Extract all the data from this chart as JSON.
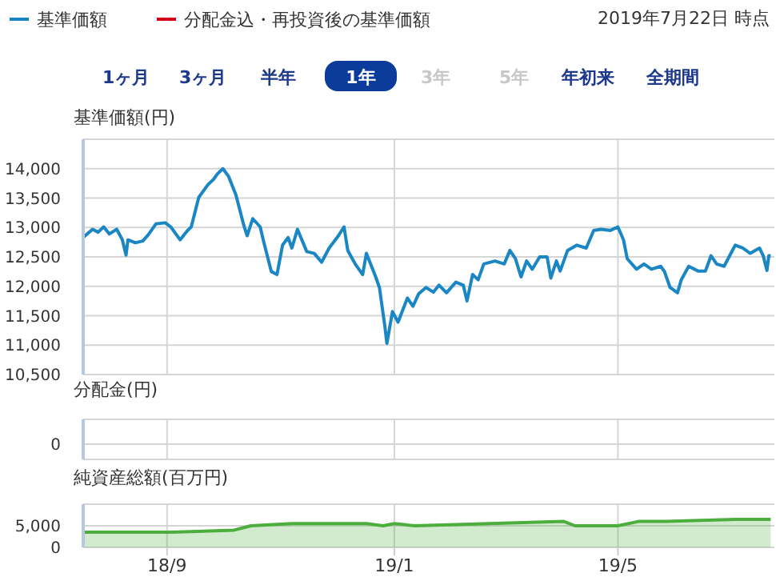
{
  "chart_data": [
    {
      "type": "line",
      "subtitle": "2019年7月22日 時点",
      "ylabel": "基準価額(円)",
      "legend": "top left",
      "grid": true,
      "tick_labels": "y",
      "annotations": [
        "1ヶ月",
        "3ヶ月",
        "半年",
        "1年",
        "3年",
        "5年",
        "年初来",
        "全期間"
      ],
      "xlim": [
        "2018-07-18",
        "2019-07-24"
      ],
      "ylim": [
        10500,
        14500
      ],
      "yticks": [
        {
          "value": 10500,
          "label": "10,500"
        },
        {
          "value": 11000,
          "label": "11,000"
        },
        {
          "value": 11500,
          "label": "11,500"
        },
        {
          "value": 12000,
          "label": "12,000"
        },
        {
          "value": 12500,
          "label": "12,500"
        },
        {
          "value": 13000,
          "label": "13,000"
        },
        {
          "value": 13500,
          "label": "13,500"
        },
        {
          "value": 14000,
          "label": "14,000"
        }
      ],
      "x": [
        "2018-07-18",
        "2018-07-23",
        "2018-07-26",
        "2018-07-29",
        "2018-08-01",
        "2018-08-05",
        "2018-08-08",
        "2018-08-10",
        "2018-08-11",
        "2018-08-15",
        "2018-08-19",
        "2018-08-22",
        "2018-08-26",
        "2018-08-31",
        "2018-09-03",
        "2018-09-08",
        "2018-09-12",
        "2018-09-14",
        "2018-09-18",
        "2018-09-23",
        "2018-09-26",
        "2018-09-28",
        "2018-10-01",
        "2018-10-04",
        "2018-10-08",
        "2018-10-12",
        "2018-10-14",
        "2018-10-17",
        "2018-10-21",
        "2018-10-23",
        "2018-10-27",
        "2018-10-30",
        "2018-11-02",
        "2018-11-05",
        "2018-11-07",
        "2018-11-10",
        "2018-11-15",
        "2018-11-19",
        "2018-11-23",
        "2018-11-27",
        "2018-12-02",
        "2018-12-05",
        "2018-12-07",
        "2018-12-11",
        "2018-12-15",
        "2018-12-17",
        "2018-12-22",
        "2018-12-24",
        "2018-12-27",
        "2018-12-28",
        "2018-12-31",
        "2019-01-03",
        "2019-01-08",
        "2019-01-11",
        "2019-01-14",
        "2019-01-18",
        "2019-01-22",
        "2019-01-25",
        "2019-01-29",
        "2019-02-03",
        "2019-02-07",
        "2019-02-09",
        "2019-02-12",
        "2019-02-15",
        "2019-02-18",
        "2019-02-24",
        "2019-03-01",
        "2019-03-04",
        "2019-03-07",
        "2019-03-10",
        "2019-03-13",
        "2019-03-16",
        "2019-03-20",
        "2019-03-24",
        "2019-03-26",
        "2019-03-29",
        "2019-03-31",
        "2019-04-04",
        "2019-04-09",
        "2019-04-14",
        "2019-04-18",
        "2019-04-22",
        "2019-04-27",
        "2019-05-01",
        "2019-05-04",
        "2019-05-06",
        "2019-05-11",
        "2019-05-15",
        "2019-05-19",
        "2019-05-24",
        "2019-05-26",
        "2019-05-29",
        "2019-06-02",
        "2019-06-04",
        "2019-06-08",
        "2019-06-13",
        "2019-06-17",
        "2019-06-20",
        "2019-06-23",
        "2019-06-27",
        "2019-06-30",
        "2019-07-03",
        "2019-07-07",
        "2019-07-11",
        "2019-07-16",
        "2019-07-18",
        "2019-07-20",
        "2019-07-21",
        "2019-07-22"
      ],
      "series": [
        {
          "name": "基準価額",
          "color": "#1a87c4",
          "values": [
            12830,
            12970,
            12920,
            13010,
            12890,
            12970,
            12790,
            12530,
            12790,
            12740,
            12770,
            12880,
            13060,
            13080,
            13010,
            12790,
            12950,
            13010,
            13510,
            13730,
            13820,
            13910,
            14000,
            13870,
            13550,
            13060,
            12860,
            13150,
            13010,
            12740,
            12250,
            12200,
            12700,
            12830,
            12650,
            12970,
            12590,
            12560,
            12410,
            12650,
            12860,
            13010,
            12610,
            12380,
            12200,
            12560,
            12160,
            11980,
            11300,
            11030,
            11570,
            11390,
            11800,
            11660,
            11870,
            11980,
            11900,
            12020,
            11890,
            12070,
            12020,
            11750,
            12200,
            12110,
            12380,
            12430,
            12380,
            12610,
            12470,
            12160,
            12430,
            12290,
            12500,
            12500,
            12140,
            12430,
            12260,
            12610,
            12700,
            12650,
            12950,
            12970,
            12950,
            13010,
            12790,
            12470,
            12290,
            12380,
            12290,
            12340,
            12250,
            11980,
            11890,
            12110,
            12340,
            12260,
            12260,
            12520,
            12380,
            12340,
            12520,
            12700,
            12650,
            12560,
            12650,
            12520,
            12270,
            12520,
            12520
          ]
        },
        {
          "name": "分配金込・再投資後の基準価額",
          "color": "#d0021b",
          "values": [
            null,
            null,
            null,
            null,
            null,
            null,
            null,
            null,
            null,
            null,
            null,
            null,
            null,
            null,
            null,
            null,
            null,
            null,
            null,
            null,
            null,
            null,
            null,
            null,
            null,
            null,
            null,
            null,
            null,
            null,
            null,
            null,
            null,
            null,
            null,
            null,
            null,
            null,
            null,
            null,
            null,
            null,
            null,
            null,
            null,
            null,
            null,
            null,
            null,
            null,
            null,
            null,
            null,
            null,
            null,
            null,
            null,
            null,
            null,
            null,
            null,
            null,
            null,
            null,
            null,
            null,
            null,
            null,
            null,
            null,
            null,
            null,
            null,
            null,
            null,
            null,
            null,
            null,
            null,
            null,
            null,
            null,
            null,
            null,
            null,
            null,
            null,
            null,
            null,
            null,
            null,
            null,
            null,
            null,
            null,
            null,
            null,
            null,
            null,
            null,
            null,
            null,
            null,
            null,
            null,
            null,
            null,
            null,
            null
          ]
        }
      ]
    },
    {
      "type": "other",
      "ylabel": "分配金(円)",
      "annotations": [
        "0"
      ]
    },
    {
      "type": "area",
      "ylabel": "純資産総額(百万円)",
      "grid": true,
      "color": "#4cae3c",
      "xlim": [
        "2018-07-18",
        "2019-07-24"
      ],
      "ylim": [
        0,
        10000
      ],
      "yticks": [
        0,
        {
          "value": 5000,
          "label": "5,000"
        }
      ],
      "xticks": [
        {
          "value": "2018-09-01",
          "label": "18/9"
        },
        {
          "value": "2019-01-01",
          "label": "19/1"
        },
        {
          "value": "2019-05-01",
          "label": "19/5"
        }
      ],
      "x": [
        "2018-07-18",
        "2018-08-11",
        "2018-08-14",
        "2018-09-03",
        "2018-10-07",
        "2018-10-16",
        "2018-11-07",
        "2018-12-17",
        "2018-12-26",
        "2019-01-01",
        "2019-01-12",
        "2019-04-02",
        "2019-04-08",
        "2019-05-01",
        "2019-05-12",
        "2019-05-27",
        "2019-07-03",
        "2019-07-22"
      ],
      "values": [
        3500,
        3500,
        3500,
        3500,
        4000,
        5000,
        5500,
        5500,
        5000,
        5500,
        5000,
        6000,
        5000,
        5000,
        6000,
        6000,
        6500,
        6500
      ]
    }
  ]
}
